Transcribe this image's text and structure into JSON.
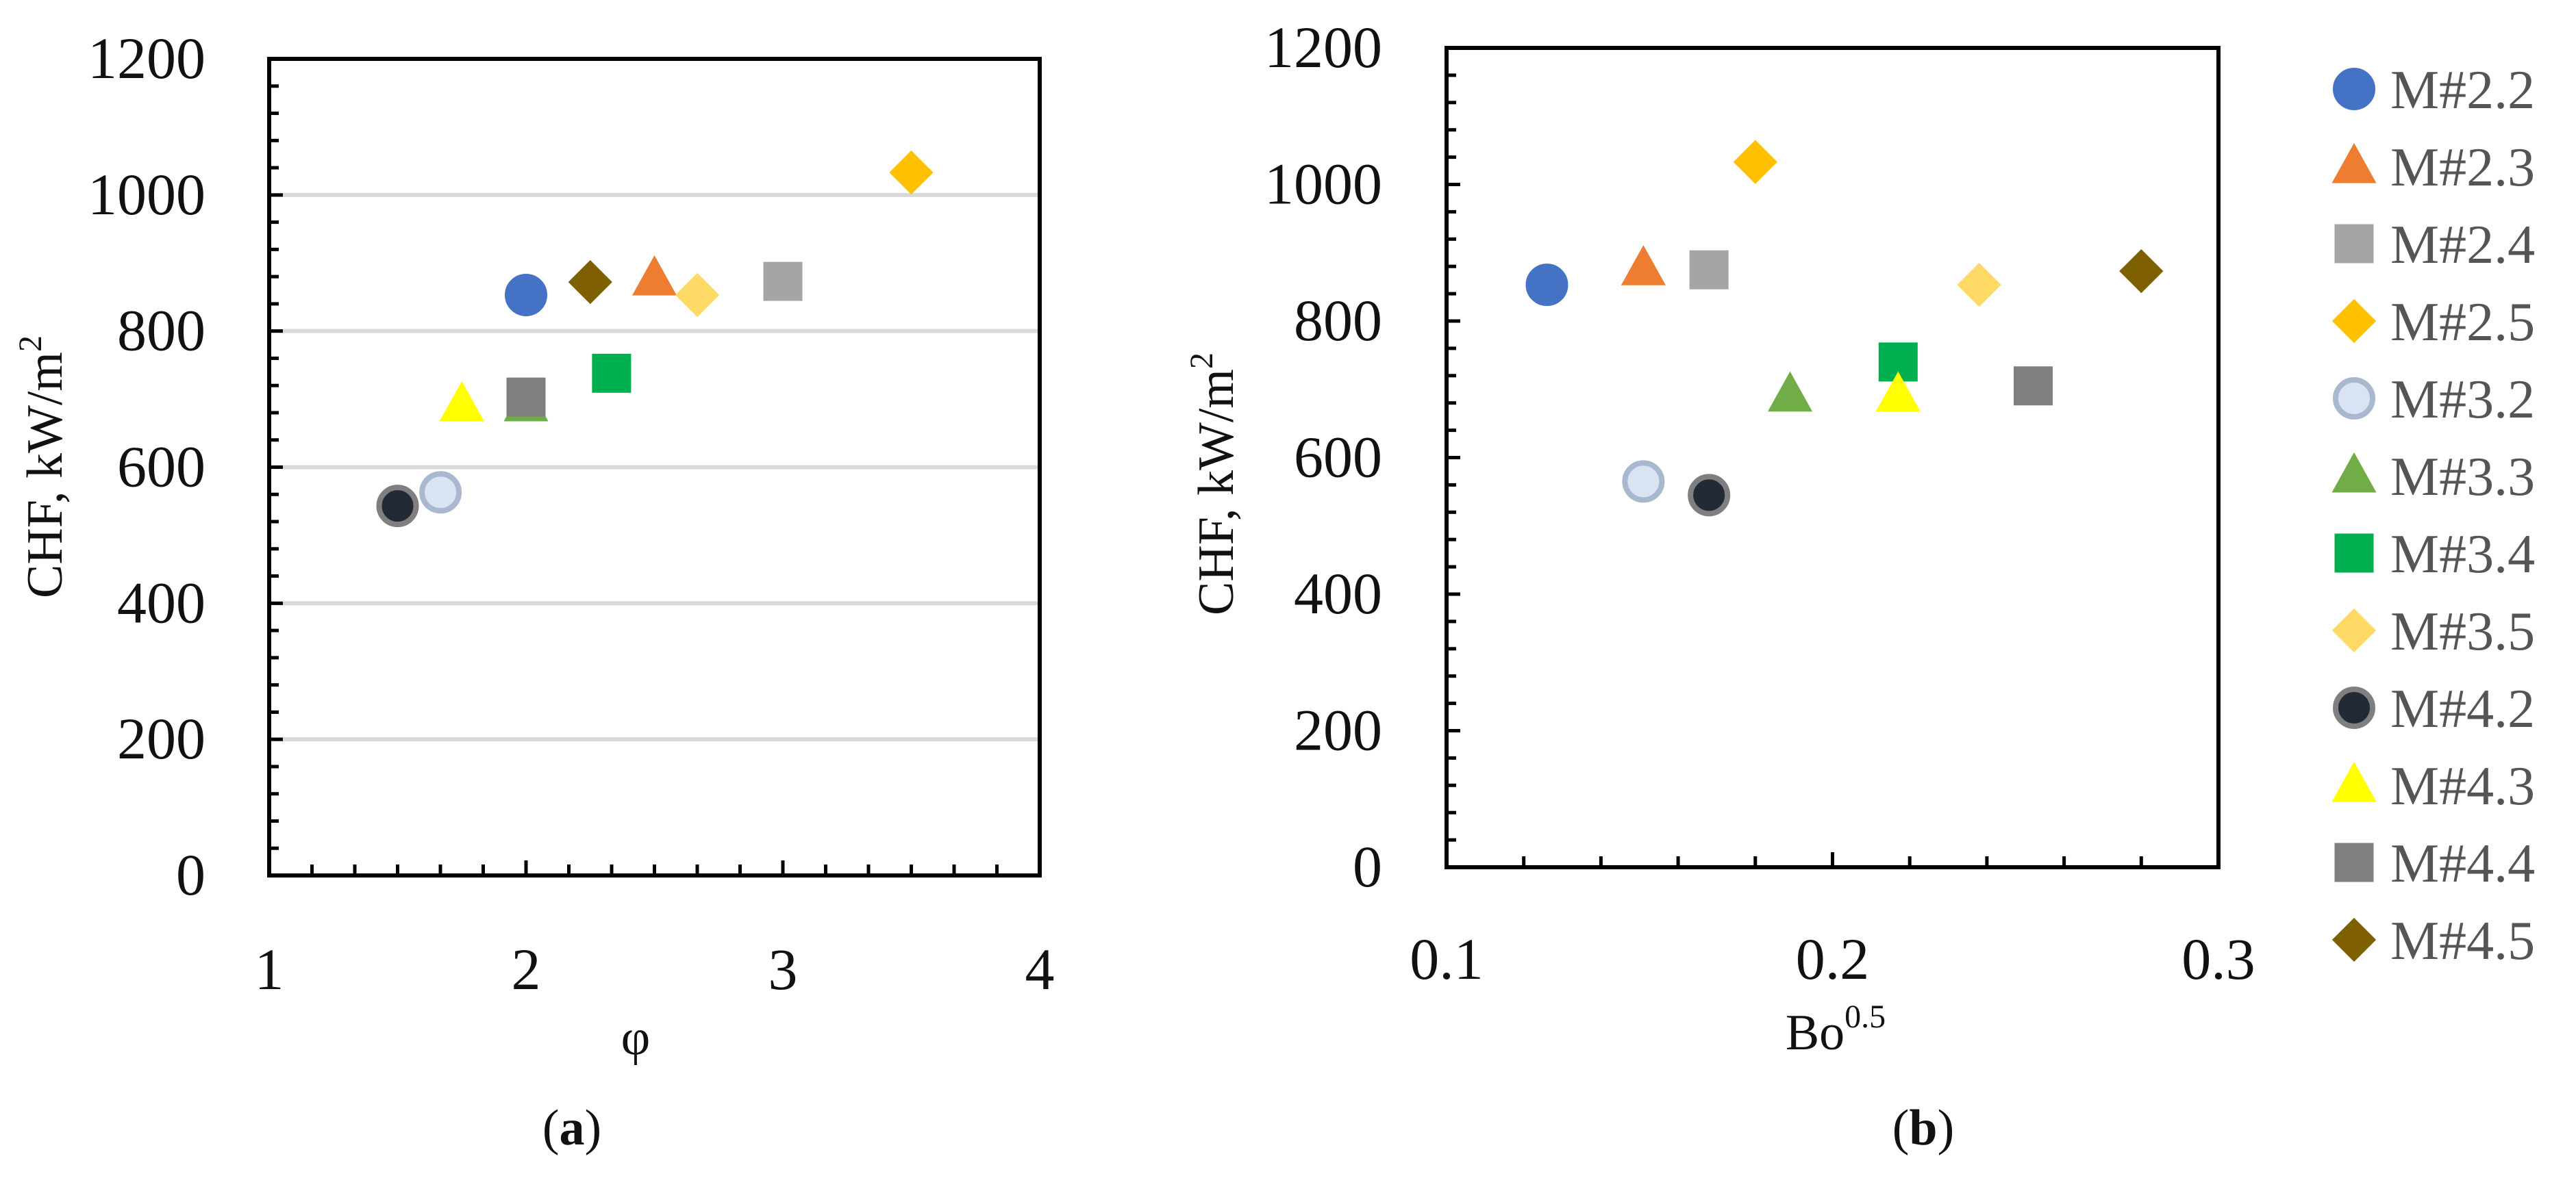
{
  "chart_data": [
    {
      "type": "scatter",
      "panel_label": "(a)",
      "xlabel": "φ",
      "ylabel": "CHF, kW/m",
      "ylabel_superscript": "2",
      "xlim": [
        1,
        4
      ],
      "ylim": [
        0,
        1200
      ],
      "x_ticks": [
        "1",
        "2",
        "3",
        "4"
      ],
      "y_ticks": [
        "0",
        "200",
        "400",
        "600",
        "800",
        "1000",
        "1200"
      ],
      "horizontal_grid": true,
      "series": [
        {
          "name": "M#2.2",
          "x": 2.0,
          "y": 853
        },
        {
          "name": "M#2.3",
          "x": 2.5,
          "y": 877
        },
        {
          "name": "M#2.4",
          "x": 3.0,
          "y": 873
        },
        {
          "name": "M#2.5",
          "x": 3.5,
          "y": 1033
        },
        {
          "name": "M#3.2",
          "x": 1.667,
          "y": 563
        },
        {
          "name": "M#3.3",
          "x": 2.0,
          "y": 692
        },
        {
          "name": "M#3.4",
          "x": 2.333,
          "y": 738
        },
        {
          "name": "M#3.5",
          "x": 2.667,
          "y": 853
        },
        {
          "name": "M#4.2",
          "x": 1.5,
          "y": 543
        },
        {
          "name": "M#4.3",
          "x": 1.75,
          "y": 692
        },
        {
          "name": "M#4.4",
          "x": 2.0,
          "y": 703
        },
        {
          "name": "M#4.5",
          "x": 2.25,
          "y": 872
        }
      ]
    },
    {
      "type": "scatter",
      "panel_label": "(b)",
      "xlabel": "Bo",
      "xlabel_superscript": "0.5",
      "ylabel": "CHF, kW/m",
      "ylabel_superscript": "2",
      "xlim": [
        0.1,
        0.3
      ],
      "ylim": [
        0,
        1200
      ],
      "x_ticks": [
        "0.1",
        "0.2",
        "0.3"
      ],
      "y_ticks": [
        "0",
        "200",
        "400",
        "600",
        "800",
        "1000",
        "1200"
      ],
      "horizontal_grid": false,
      "series": [
        {
          "name": "M#2.2",
          "x": 0.126,
          "y": 853
        },
        {
          "name": "M#2.3",
          "x": 0.151,
          "y": 877
        },
        {
          "name": "M#2.4",
          "x": 0.168,
          "y": 875
        },
        {
          "name": "M#2.5",
          "x": 0.18,
          "y": 1033
        },
        {
          "name": "M#3.2",
          "x": 0.151,
          "y": 565
        },
        {
          "name": "M#3.3",
          "x": 0.189,
          "y": 692
        },
        {
          "name": "M#3.4",
          "x": 0.217,
          "y": 740
        },
        {
          "name": "M#3.5",
          "x": 0.238,
          "y": 853
        },
        {
          "name": "M#4.2",
          "x": 0.168,
          "y": 545
        },
        {
          "name": "M#4.3",
          "x": 0.217,
          "y": 692
        },
        {
          "name": "M#4.4",
          "x": 0.252,
          "y": 705
        },
        {
          "name": "M#4.5",
          "x": 0.28,
          "y": 873
        }
      ]
    }
  ],
  "legend": {
    "placement": "right",
    "entries": [
      {
        "name": "M#2.2",
        "marker": "circle",
        "color": "#4472C4",
        "stroke": "#4472C4"
      },
      {
        "name": "M#2.3",
        "marker": "triangle",
        "color": "#ED7D31",
        "stroke": "#ED7D31"
      },
      {
        "name": "M#2.4",
        "marker": "square",
        "color": "#A5A5A5",
        "stroke": "#A5A5A5"
      },
      {
        "name": "M#2.5",
        "marker": "diamond",
        "color": "#FFC000",
        "stroke": "#FFC000"
      },
      {
        "name": "M#3.2",
        "marker": "circle",
        "color": "#DAE3F3",
        "stroke": "#A9B8CE"
      },
      {
        "name": "M#3.3",
        "marker": "triangle",
        "color": "#70AD47",
        "stroke": "#70AD47"
      },
      {
        "name": "M#3.4",
        "marker": "square",
        "color": "#00B050",
        "stroke": "#00B050"
      },
      {
        "name": "M#3.5",
        "marker": "diamond",
        "color": "#FFD966",
        "stroke": "#FFD966"
      },
      {
        "name": "M#4.2",
        "marker": "circle",
        "color": "#222A35",
        "stroke": "#7F7F7F"
      },
      {
        "name": "M#4.3",
        "marker": "triangle",
        "color": "#FFFF00",
        "stroke": "#FFFF00"
      },
      {
        "name": "M#4.4",
        "marker": "square",
        "color": "#7F7F7F",
        "stroke": "#7F7F7F"
      },
      {
        "name": "M#4.5",
        "marker": "diamond",
        "color": "#7F6000",
        "stroke": "#7F6000"
      }
    ]
  },
  "captions": {
    "a": {
      "open": "(",
      "letter": "a",
      "close": ")"
    },
    "b": {
      "open": "(",
      "letter": "b",
      "close": ")"
    }
  }
}
